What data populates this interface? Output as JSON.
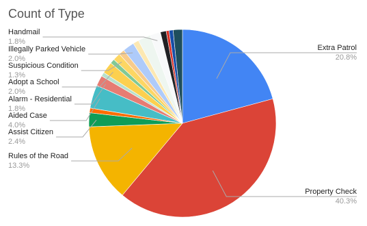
{
  "chart_data": {
    "type": "pie",
    "title": "Count of Type",
    "categories": [
      "Extra Patrol",
      "Property Check",
      "Rules of the Road",
      "Assist Citizen",
      null,
      "Aided Case",
      "Alarm - Residential",
      null,
      "Adopt a School",
      null,
      "Suspicious Condition",
      null,
      "Illegally Parked Vehicle",
      null,
      null,
      "Handmail",
      null,
      null,
      null,
      null
    ],
    "values": [
      20.8,
      40.3,
      13.3,
      2.4,
      0.8,
      4.0,
      1.8,
      0.7,
      2.0,
      0.8,
      1.3,
      1.0,
      2.0,
      1.0,
      2.2,
      1.8,
      1.0,
      0.5,
      0.7,
      1.6
    ],
    "value_labels": [
      "20.8%",
      "40.3%",
      "13.3%",
      "2.4%",
      null,
      "4.0%",
      "1.8%",
      null,
      "2.0%",
      null,
      "1.3%",
      null,
      "2.0%",
      null,
      null,
      "1.8%",
      null,
      null,
      null,
      null
    ],
    "colors": [
      "#4285f4",
      "#db4437",
      "#f4b400",
      "#0f9d58",
      "#ff6d01",
      "#46bdc6",
      "#e67c73",
      "#b7e1cd",
      "#fcd04f",
      "#81c995",
      "#fdd663",
      "#f7cb8b",
      "#aecbfa",
      "#fce8b2",
      "#eef6f0",
      "#f8f9fa",
      "#202124",
      "#d93025",
      "#174ea6",
      "#1e4e5c"
    ]
  }
}
